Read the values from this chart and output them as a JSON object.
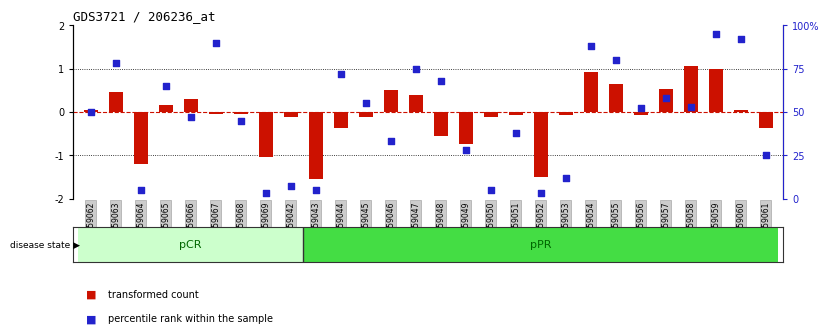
{
  "title": "GDS3721 / 206236_at",
  "samples": [
    "GSM559062",
    "GSM559063",
    "GSM559064",
    "GSM559065",
    "GSM559066",
    "GSM559067",
    "GSM559068",
    "GSM559069",
    "GSM559042",
    "GSM559043",
    "GSM559044",
    "GSM559045",
    "GSM559046",
    "GSM559047",
    "GSM559048",
    "GSM559049",
    "GSM559050",
    "GSM559051",
    "GSM559052",
    "GSM559053",
    "GSM559054",
    "GSM559055",
    "GSM559056",
    "GSM559057",
    "GSM559058",
    "GSM559059",
    "GSM559060",
    "GSM559061"
  ],
  "transformed_count": [
    0.05,
    0.45,
    -1.2,
    0.15,
    0.3,
    -0.05,
    -0.05,
    -1.05,
    -0.12,
    -1.55,
    -0.38,
    -0.12,
    0.5,
    0.38,
    -0.55,
    -0.75,
    -0.12,
    -0.08,
    -1.5,
    -0.08,
    0.93,
    0.65,
    -0.08,
    0.52,
    1.05,
    1.0,
    0.05,
    -0.38
  ],
  "percentile_rank": [
    50,
    78,
    5,
    65,
    47,
    90,
    45,
    3,
    7,
    5,
    72,
    55,
    33,
    75,
    68,
    28,
    5,
    38,
    3,
    12,
    88,
    80,
    52,
    58,
    53,
    95,
    92,
    25
  ],
  "pCR_count": 9,
  "pPR_count": 19,
  "ylim": [
    -2,
    2
  ],
  "yticks_left": [
    -2,
    -1,
    0,
    1,
    2
  ],
  "yticks_right": [
    0,
    25,
    50,
    75,
    100
  ],
  "bar_color": "#cc1100",
  "scatter_color": "#2222cc",
  "pCR_color": "#ccffcc",
  "pPR_color": "#44dd44",
  "label_color": "#006600",
  "tick_label_bg": "#cccccc",
  "legend_bar_label": "transformed count",
  "legend_scatter_label": "percentile rank within the sample",
  "disease_state_label": "disease state"
}
